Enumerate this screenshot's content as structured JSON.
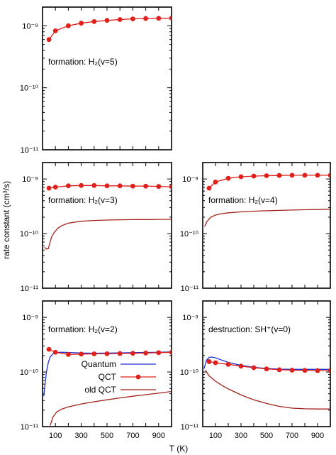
{
  "figure": {
    "ylabel": "rate constant (cm³/s)",
    "xlabel": "T (K)"
  },
  "chart_data": [
    {
      "type": "line",
      "id": "h2v5",
      "annotation": "formation: H₂(v=5)",
      "yscale": "log",
      "ylim": [
        1e-11,
        2e-09
      ],
      "xlim": [
        0,
        1000
      ],
      "ytick_values": [
        1e-09,
        1e-10,
        1e-11
      ],
      "ytick_labels": [
        "10⁻⁹",
        "10⁻¹⁰",
        "10⁻¹¹"
      ],
      "xtick_labels": [],
      "series": [
        {
          "name": "QCT",
          "color": "#e0201a",
          "markers": true,
          "x": [
            50,
            100,
            200,
            300,
            400,
            500,
            600,
            700,
            800,
            900,
            1000
          ],
          "y": [
            6e-10,
            8.3e-10,
            1e-09,
            1.1e-09,
            1.17e-09,
            1.22e-09,
            1.26e-09,
            1.29e-09,
            1.31e-09,
            1.32e-09,
            1.33e-09
          ]
        }
      ]
    },
    {
      "type": "line",
      "id": "h2v3",
      "annotation": "formation: H₂(v=3)",
      "yscale": "log",
      "ylim": [
        1e-11,
        2e-09
      ],
      "xlim": [
        0,
        1000
      ],
      "ytick_values": [
        1e-09,
        1e-10,
        1e-11
      ],
      "ytick_labels": [
        "10⁻⁹",
        "10⁻¹⁰",
        "10⁻¹¹"
      ],
      "xtick_labels": [],
      "series": [
        {
          "name": "QCT",
          "color": "#e0201a",
          "markers": true,
          "x": [
            50,
            100,
            200,
            300,
            400,
            500,
            600,
            700,
            800,
            900,
            1000
          ],
          "y": [
            6.8e-10,
            7.1e-10,
            7.5e-10,
            7.6e-10,
            7.6e-10,
            7.5e-10,
            7.5e-10,
            7.4e-10,
            7.4e-10,
            7.3e-10,
            7.2e-10
          ]
        },
        {
          "name": "old QCT",
          "color": "#a0221a",
          "markers": false,
          "x": [
            15,
            30,
            45,
            55,
            70,
            90,
            120,
            150,
            200,
            300,
            400,
            500,
            600,
            700,
            800,
            900,
            1000
          ],
          "y": [
            5.6e-11,
            5.2e-11,
            5.3e-11,
            6.5e-11,
            8.6e-11,
            1.05e-10,
            1.26e-10,
            1.4e-10,
            1.55e-10,
            1.68e-10,
            1.74e-10,
            1.77e-10,
            1.79e-10,
            1.8e-10,
            1.81e-10,
            1.82e-10,
            1.83e-10
          ]
        }
      ]
    },
    {
      "type": "line",
      "id": "h2v4",
      "annotation": "formation: H₂(v=4)",
      "yscale": "log",
      "ylim": [
        1e-11,
        2e-09
      ],
      "xlim": [
        0,
        1000
      ],
      "ytick_values": [
        1e-09,
        1e-10,
        1e-11
      ],
      "ytick_labels": [
        "10⁻⁹",
        "10⁻¹⁰",
        "10⁻¹¹"
      ],
      "xtick_labels": [],
      "series": [
        {
          "name": "QCT",
          "color": "#e0201a",
          "markers": true,
          "x": [
            50,
            100,
            200,
            300,
            400,
            500,
            600,
            700,
            800,
            900,
            1000
          ],
          "y": [
            6.8e-10,
            8.8e-10,
            1.03e-09,
            1.1e-09,
            1.13e-09,
            1.15e-09,
            1.16e-09,
            1.17e-09,
            1.17e-09,
            1.17e-09,
            1.17e-09
          ]
        },
        {
          "name": "old QCT",
          "color": "#a0221a",
          "markers": false,
          "x": [
            15,
            30,
            60,
            100,
            150,
            200,
            300,
            400,
            500,
            600,
            700,
            800,
            900,
            1000
          ],
          "y": [
            1.35e-10,
            1.62e-10,
            1.98e-10,
            2.18e-10,
            2.32e-10,
            2.4e-10,
            2.5e-10,
            2.57e-10,
            2.62e-10,
            2.66e-10,
            2.7e-10,
            2.73e-10,
            2.76e-10,
            2.8e-10
          ]
        }
      ]
    },
    {
      "type": "line",
      "id": "h2v2",
      "annotation": "formation: H₂(v=2)",
      "yscale": "log",
      "ylim": [
        1e-11,
        2e-09
      ],
      "xlim": [
        0,
        1000
      ],
      "ytick_values": [
        1e-09,
        1e-10,
        1e-11
      ],
      "ytick_labels": [
        "10⁻⁹",
        "10⁻¹⁰",
        "10⁻¹¹"
      ],
      "xtick_labels": [
        "100",
        "300",
        "500",
        "700",
        "900"
      ],
      "xtick_values": [
        100,
        300,
        500,
        700,
        900
      ],
      "legend": [
        {
          "label": "Quantum",
          "color": "#1a2fd0",
          "markers": false
        },
        {
          "label": "QCT",
          "color": "#e0201a",
          "markers": true
        },
        {
          "label": "old QCT",
          "color": "#a0221a",
          "markers": false
        }
      ],
      "series": [
        {
          "name": "Quantum",
          "color": "#1a2fd0",
          "markers": false,
          "x": [
            10,
            20,
            30,
            45,
            60,
            80,
            100,
            130,
            160,
            200,
            300,
            400,
            500,
            600,
            700,
            800,
            900,
            1000
          ],
          "y": [
            3.6e-11,
            6e-11,
            1e-10,
            1.5e-10,
            1.9e-10,
            2.15e-10,
            2.25e-10,
            2.3e-10,
            2.3e-10,
            2.28e-10,
            2.23e-10,
            2.21e-10,
            2.22e-10,
            2.24e-10,
            2.26e-10,
            2.28e-10,
            2.3e-10,
            2.33e-10
          ]
        },
        {
          "name": "QCT",
          "color": "#e0201a",
          "markers": true,
          "x": [
            50,
            100,
            200,
            300,
            400,
            500,
            600,
            700,
            800,
            900,
            1000
          ],
          "y": [
            2.6e-10,
            2.3e-10,
            2.1e-10,
            2.13e-10,
            2.15e-10,
            2.16e-10,
            2.18e-10,
            2.2e-10,
            2.23e-10,
            2.26e-10,
            2.3e-10
          ]
        },
        {
          "name": "old QCT",
          "color": "#a0221a",
          "markers": false,
          "x": [
            60,
            80,
            110,
            150,
            200,
            300,
            400,
            500,
            600,
            700,
            800,
            900,
            1000
          ],
          "y": [
            1.05e-11,
            1.5e-11,
            1.85e-11,
            2.1e-11,
            2.3e-11,
            2.6e-11,
            2.85e-11,
            3.1e-11,
            3.35e-11,
            3.6e-11,
            3.85e-11,
            4.1e-11,
            4.4e-11
          ]
        }
      ]
    },
    {
      "type": "line",
      "id": "shplus",
      "annotation": "destruction: SH⁺(v=0)",
      "yscale": "log",
      "ylim": [
        1e-11,
        2e-09
      ],
      "xlim": [
        0,
        1000
      ],
      "ytick_values": [
        1e-09,
        1e-10,
        1e-11
      ],
      "ytick_labels": [
        "10⁻⁹",
        "10⁻¹⁰",
        "10⁻¹¹"
      ],
      "xtick_labels": [
        "100",
        "300",
        "500",
        "700",
        "900"
      ],
      "xtick_values": [
        100,
        300,
        500,
        700,
        900
      ],
      "series": [
        {
          "name": "Quantum",
          "color": "#1a2fd0",
          "markers": false,
          "x": [
            10,
            30,
            50,
            70,
            100,
            150,
            200,
            300,
            400,
            500,
            600,
            700,
            800,
            900,
            1000
          ],
          "y": [
            1.15e-10,
            1.65e-10,
            1.85e-10,
            1.88e-10,
            1.82e-10,
            1.65e-10,
            1.5e-10,
            1.32e-10,
            1.22e-10,
            1.16e-10,
            1.13e-10,
            1.12e-10,
            1.12e-10,
            1.12e-10,
            1.12e-10
          ]
        },
        {
          "name": "QCT",
          "color": "#e0201a",
          "markers": true,
          "x": [
            50,
            100,
            200,
            300,
            400,
            500,
            600,
            700,
            800,
            900,
            1000
          ],
          "y": [
            1.55e-10,
            1.48e-10,
            1.38e-10,
            1.28e-10,
            1.2e-10,
            1.14e-10,
            1.1e-10,
            1.08e-10,
            1.07e-10,
            1.06e-10,
            1.06e-10
          ]
        },
        {
          "name": "old QCT",
          "color": "#a0221a",
          "markers": false,
          "x": [
            20,
            50,
            100,
            150,
            200,
            300,
            400,
            500,
            600,
            700,
            800,
            900,
            1000
          ],
          "y": [
            1.08e-10,
            8.5e-11,
            6.8e-11,
            5.7e-11,
            4.9e-11,
            3.8e-11,
            3.1e-11,
            2.65e-11,
            2.35e-11,
            2.18e-11,
            2.12e-11,
            2.1e-11,
            2.1e-11
          ]
        }
      ]
    }
  ]
}
